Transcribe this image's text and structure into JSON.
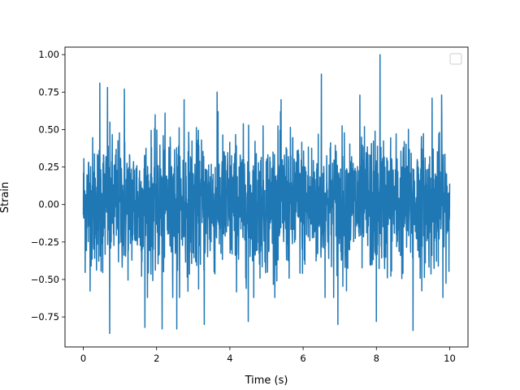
{
  "chart_data": {
    "type": "line",
    "title": "",
    "xlabel": "Time (s)",
    "ylabel": "Strain",
    "xlim": [
      -0.5,
      10.5
    ],
    "ylim": [
      -0.95,
      1.05
    ],
    "xticks": [
      0,
      2,
      4,
      6,
      8,
      10
    ],
    "xtick_labels": [
      "0",
      "2",
      "4",
      "6",
      "8",
      "10"
    ],
    "yticks": [
      -0.75,
      -0.5,
      -0.25,
      0.0,
      0.25,
      0.5,
      0.75,
      1.0
    ],
    "ytick_labels": [
      "−0.75",
      "−0.50",
      "−0.25",
      "0.00",
      "0.25",
      "0.50",
      "0.75",
      "1.00"
    ],
    "grid": false,
    "legend": {
      "placement": "upper right",
      "entries": []
    },
    "series": [
      {
        "color": "#1f77b4",
        "x_range": [
          0,
          10
        ],
        "sample_count": 2000,
        "description_values": {
          "min": -0.86,
          "max": 1.0,
          "typical_envelope": [
            -0.45,
            0.45
          ]
        },
        "peaks": [
          {
            "x": 0.45,
            "y": 0.81
          },
          {
            "x": 0.66,
            "y": 0.78
          },
          {
            "x": 0.72,
            "y": -0.86
          },
          {
            "x": 1.12,
            "y": 0.77
          },
          {
            "x": 1.68,
            "y": -0.82
          },
          {
            "x": 2.15,
            "y": -0.83
          },
          {
            "x": 2.55,
            "y": -0.83
          },
          {
            "x": 2.75,
            "y": 0.7
          },
          {
            "x": 3.3,
            "y": -0.8
          },
          {
            "x": 3.65,
            "y": 0.75
          },
          {
            "x": 4.5,
            "y": -0.78
          },
          {
            "x": 5.4,
            "y": 0.7
          },
          {
            "x": 6.5,
            "y": 0.87
          },
          {
            "x": 6.95,
            "y": -0.8
          },
          {
            "x": 7.55,
            "y": 0.73
          },
          {
            "x": 8.1,
            "y": 1.0
          },
          {
            "x": 8.0,
            "y": -0.78
          },
          {
            "x": 9.0,
            "y": -0.84
          },
          {
            "x": 9.52,
            "y": 0.71
          },
          {
            "x": 9.78,
            "y": 0.73
          }
        ]
      }
    ]
  }
}
